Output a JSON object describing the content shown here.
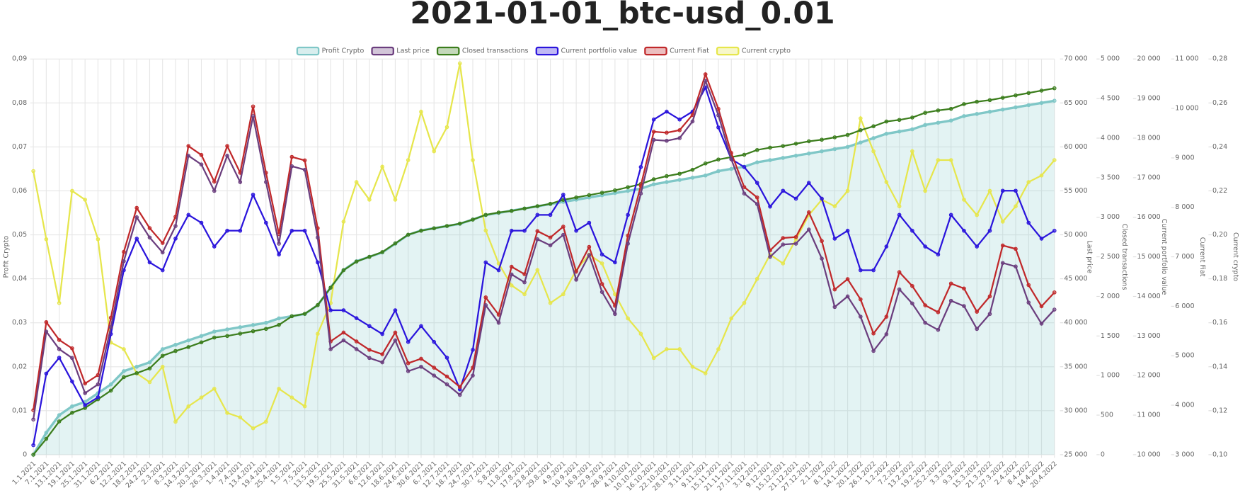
{
  "chart_data": {
    "type": "line",
    "title": "2021-01-01_btc-usd_0.01",
    "grid": true,
    "legend": "top",
    "categories": [
      "1.1.2021",
      "7.1.2021",
      "13.1.2021",
      "19.1.2021",
      "25.1.2021",
      "31.1.2021",
      "6.2.2021",
      "12.2.2021",
      "18.2.2021",
      "24.2.2021",
      "2.3.2021",
      "8.3.2021",
      "14.3.2021",
      "20.3.2021",
      "26.3.2021",
      "1.4.2021",
      "7.4.2021",
      "13.4.2021",
      "19.4.2021",
      "25.4.2021",
      "1.5.2021",
      "7.5.2021",
      "13.5.2021",
      "19.5.2021",
      "25.5.2021",
      "31.5.2021",
      "6.6.2021",
      "12.6.2021",
      "18.6.2021",
      "24.6.2021",
      "30.6.2021",
      "6.7.2021",
      "12.7.2021",
      "18.7.2021",
      "24.7.2021",
      "30.7.2021",
      "5.8.2021",
      "11.8.2021",
      "17.8.2021",
      "23.8.2021",
      "29.8.2021",
      "4.9.2021",
      "10.9.2021",
      "16.9.2021",
      "22.9.2021",
      "28.9.2021",
      "4.10.2021",
      "10.10.2021",
      "16.10.2021",
      "22.10.2021",
      "28.10.2021",
      "3.11.2021",
      "9.11.2021",
      "15.11.2021",
      "21.11.2021",
      "27.11.2021",
      "3.12.2021",
      "9.12.2021",
      "15.12.2021",
      "21.12.2021",
      "27.12.2021",
      "2.1.2022",
      "8.1.2022",
      "14.1.2022",
      "20.1.2022",
      "26.1.2022",
      "1.2.2022",
      "7.2.2022",
      "13.2.2022",
      "19.2.2022",
      "25.2.2022",
      "3.3.2022",
      "9.3.2022",
      "15.3.2022",
      "21.3.2022",
      "27.3.2022",
      "2.4.2022",
      "8.4.2022",
      "14.4.2022",
      "20.4.2022"
    ],
    "ylim": [
      0,
      0.09
    ],
    "yticks": [
      0,
      {
        "value": 0.01,
        "label": "0,01"
      },
      {
        "value": 0.02,
        "label": "0,02"
      },
      {
        "value": 0.03,
        "label": "0,03"
      },
      {
        "value": 0.04,
        "label": "0,04"
      },
      {
        "value": 0.05,
        "label": "0,05"
      },
      {
        "value": 0.06,
        "label": "0,06"
      },
      {
        "value": 0.07,
        "label": "0,07"
      },
      {
        "value": 0.08,
        "label": "0,08"
      },
      {
        "value": 0.09,
        "label": "0,09"
      }
    ],
    "y2lim": [
      25000,
      70000
    ],
    "y2ticks": [
      {
        "value": 25000,
        "label": "25 000"
      },
      {
        "value": 30000,
        "label": "30 000"
      },
      {
        "value": 35000,
        "label": "35 000"
      },
      {
        "value": 40000,
        "label": "40 000"
      },
      {
        "value": 45000,
        "label": "45 000"
      },
      {
        "value": 50000,
        "label": "50 000"
      },
      {
        "value": 55000,
        "label": "55 000"
      },
      {
        "value": 60000,
        "label": "60 000"
      },
      {
        "value": 65000,
        "label": "65 000"
      },
      {
        "value": 70000,
        "label": "70 000"
      }
    ],
    "y3lim": [
      0,
      5000
    ],
    "y3ticks": [
      0,
      500,
      {
        "value": 1000,
        "label": "1 000"
      },
      {
        "value": 1500,
        "label": "1 500"
      },
      {
        "value": 2000,
        "label": "2 000"
      },
      {
        "value": 2500,
        "label": "2 500"
      },
      {
        "value": 3000,
        "label": "3 000"
      },
      {
        "value": 3500,
        "label": "3 500"
      },
      {
        "value": 4000,
        "label": "4 000"
      },
      {
        "value": 4500,
        "label": "4 500"
      },
      {
        "value": 5000,
        "label": "5 000"
      }
    ],
    "y4lim": [
      10000,
      20000
    ],
    "y4ticks": [
      {
        "value": 10000,
        "label": "10 000"
      },
      {
        "value": 11000,
        "label": "11 000"
      },
      {
        "value": 12000,
        "label": "12 000"
      },
      {
        "value": 13000,
        "label": "13 000"
      },
      {
        "value": 14000,
        "label": "14 000"
      },
      {
        "value": 15000,
        "label": "15 000"
      },
      {
        "value": 16000,
        "label": "16 000"
      },
      {
        "value": 17000,
        "label": "17 000"
      },
      {
        "value": 18000,
        "label": "18 000"
      },
      {
        "value": 19000,
        "label": "19 000"
      },
      {
        "value": 20000,
        "label": "20 000"
      }
    ],
    "y5lim": [
      3000,
      11000
    ],
    "y5ticks": [
      {
        "value": 3000,
        "label": "3 000"
      },
      {
        "value": 4000,
        "label": "4 000"
      },
      {
        "value": 5000,
        "label": "5 000"
      },
      {
        "value": 6000,
        "label": "6 000"
      },
      {
        "value": 7000,
        "label": "7 000"
      },
      {
        "value": 8000,
        "label": "8 000"
      },
      {
        "value": 9000,
        "label": "9 000"
      },
      {
        "value": 10000,
        "label": "10 000"
      },
      {
        "value": 11000,
        "label": "11 000"
      }
    ],
    "y6lim": [
      0.1,
      0.28
    ],
    "y6ticks": [
      {
        "value": 0.1,
        "label": "0,10"
      },
      {
        "value": 0.12,
        "label": "0,12"
      },
      {
        "value": 0.14,
        "label": "0,14"
      },
      {
        "value": 0.16,
        "label": "0,16"
      },
      {
        "value": 0.18,
        "label": "0,18"
      },
      {
        "value": 0.2,
        "label": "0,20"
      },
      {
        "value": 0.22,
        "label": "0,22"
      },
      {
        "value": 0.24,
        "label": "0,24"
      },
      {
        "value": 0.26,
        "label": "0,26"
      },
      {
        "value": 0.28,
        "label": "0,28"
      }
    ],
    "series": [
      {
        "name": "Profit Crypto",
        "color": "#7fc7c7",
        "axis": "y",
        "fill": true,
        "values": [
          0,
          0.005,
          0.009,
          0.011,
          0.012,
          0.014,
          0.016,
          0.019,
          0.02,
          0.021,
          0.024,
          0.025,
          0.026,
          0.027,
          0.028,
          0.0285,
          0.029,
          0.0295,
          0.03,
          0.031,
          0.0315,
          0.032,
          0.034,
          0.038,
          0.042,
          0.044,
          0.045,
          0.046,
          0.048,
          0.05,
          0.051,
          0.0515,
          0.052,
          0.0525,
          0.0535,
          0.0545,
          0.055,
          0.0555,
          0.056,
          0.0565,
          0.057,
          0.0575,
          0.058,
          0.0585,
          0.059,
          0.0595,
          0.06,
          0.0605,
          0.0615,
          0.062,
          0.0625,
          0.063,
          0.0635,
          0.0645,
          0.065,
          0.0655,
          0.0665,
          0.067,
          0.0675,
          0.068,
          0.0685,
          0.069,
          0.0695,
          0.07,
          0.071,
          0.072,
          0.073,
          0.0735,
          0.074,
          0.075,
          0.0755,
          0.076,
          0.077,
          0.0775,
          0.078,
          0.0785,
          0.079,
          0.0795,
          0.08,
          0.0805
        ]
      },
      {
        "name": "Last price",
        "color": "#6b3e7e",
        "axis": "y2",
        "values": [
          29000,
          39000,
          37000,
          36000,
          32000,
          33000,
          39500,
          47000,
          52000,
          49700,
          48000,
          51000,
          59000,
          58000,
          55000,
          59000,
          56000,
          63500,
          56000,
          49000,
          57800,
          57400,
          49700,
          37000,
          38000,
          37000,
          36000,
          35500,
          38000,
          34500,
          35000,
          34000,
          33000,
          31800,
          34000,
          42000,
          40000,
          45500,
          44600,
          49500,
          48800,
          50000,
          44900,
          47700,
          43500,
          41000,
          49000,
          54700,
          60800,
          60700,
          61000,
          62900,
          67500,
          63600,
          58600,
          54700,
          53500,
          47500,
          48900,
          49000,
          50600,
          47300,
          41800,
          43000,
          40700,
          36800,
          38700,
          43800,
          42200,
          40000,
          39200,
          42500,
          41900,
          39300,
          41000,
          46800,
          46400,
          42300,
          39900,
          41500
        ]
      },
      {
        "name": "Closed transactions",
        "color": "#3b7d1c",
        "axis": "y3",
        "values": [
          0,
          200,
          420,
          530,
          590,
          700,
          810,
          980,
          1030,
          1090,
          1250,
          1310,
          1360,
          1420,
          1480,
          1500,
          1530,
          1560,
          1590,
          1640,
          1750,
          1780,
          1890,
          2110,
          2330,
          2440,
          2500,
          2560,
          2670,
          2780,
          2830,
          2860,
          2890,
          2920,
          2970,
          3030,
          3060,
          3080,
          3110,
          3140,
          3170,
          3220,
          3250,
          3280,
          3310,
          3340,
          3380,
          3420,
          3480,
          3520,
          3550,
          3600,
          3680,
          3730,
          3760,
          3790,
          3850,
          3880,
          3900,
          3930,
          3960,
          3980,
          4010,
          4040,
          4100,
          4150,
          4210,
          4230,
          4260,
          4320,
          4350,
          4370,
          4430,
          4460,
          4480,
          4510,
          4540,
          4570,
          4600,
          4630
        ]
      },
      {
        "name": "Current portfolio value",
        "color": "#2a14dc",
        "axis": "y4",
        "values": [
          10240,
          12050,
          12450,
          11850,
          11250,
          11450,
          13050,
          14660,
          15460,
          14860,
          14660,
          15460,
          16060,
          15860,
          15260,
          15660,
          15660,
          16570,
          15860,
          15060,
          15660,
          15660,
          14860,
          13650,
          13650,
          13450,
          13250,
          13050,
          13650,
          12850,
          13250,
          12850,
          12450,
          11650,
          12650,
          14860,
          14660,
          15660,
          15660,
          16060,
          16060,
          16570,
          15660,
          15860,
          15060,
          14860,
          16060,
          17270,
          18470,
          18670,
          18470,
          18670,
          19280,
          18270,
          17470,
          17270,
          16870,
          16270,
          16670,
          16470,
          16870,
          16470,
          15460,
          15660,
          14660,
          14660,
          15260,
          16060,
          15660,
          15260,
          15060,
          16060,
          15660,
          15260,
          15660,
          16670,
          16670,
          15860,
          15460,
          15660
        ]
      },
      {
        "name": "Current Fiat",
        "color": "#c0282a",
        "axis": "y5",
        "values": [
          3900,
          5680,
          5320,
          5150,
          4440,
          4610,
          5770,
          7100,
          7990,
          7580,
          7280,
          7810,
          9240,
          9060,
          8520,
          9240,
          8700,
          10040,
          8700,
          7460,
          9020,
          8950,
          7580,
          5290,
          5470,
          5290,
          5120,
          5030,
          5470,
          4850,
          4940,
          4760,
          4580,
          4370,
          4760,
          6180,
          5830,
          6800,
          6650,
          7520,
          7390,
          7610,
          6700,
          7200,
          6450,
          6010,
          7430,
          8440,
          9530,
          9510,
          9560,
          9870,
          10690,
          9990,
          9100,
          8410,
          8200,
          7130,
          7380,
          7400,
          7900,
          7320,
          6340,
          6550,
          6140,
          5450,
          5790,
          6690,
          6410,
          6020,
          5880,
          6460,
          6360,
          5890,
          6200,
          7230,
          7160,
          6430,
          6000,
          6280
        ]
      },
      {
        "name": "Current crypto",
        "color": "#e6e64c",
        "axis": "y6",
        "values": [
          0.229,
          0.198,
          0.169,
          0.22,
          0.216,
          0.198,
          0.151,
          0.148,
          0.137,
          0.133,
          0.14,
          0.115,
          0.122,
          0.126,
          0.13,
          0.119,
          0.117,
          0.112,
          0.115,
          0.13,
          0.126,
          0.122,
          0.155,
          0.169,
          0.206,
          0.224,
          0.216,
          0.231,
          0.216,
          0.234,
          0.256,
          0.238,
          0.249,
          0.278,
          0.234,
          0.202,
          0.187,
          0.177,
          0.173,
          0.184,
          0.169,
          0.173,
          0.184,
          0.191,
          0.187,
          0.173,
          0.162,
          0.155,
          0.144,
          0.148,
          0.148,
          0.14,
          0.137,
          0.148,
          0.162,
          0.169,
          0.18,
          0.191,
          0.187,
          0.198,
          0.209,
          0.216,
          0.213,
          0.22,
          0.253,
          0.238,
          0.224,
          0.213,
          0.238,
          0.22,
          0.234,
          0.234,
          0.216,
          0.209,
          0.22,
          0.206,
          0.213,
          0.224,
          0.227,
          0.234
        ]
      }
    ]
  }
}
